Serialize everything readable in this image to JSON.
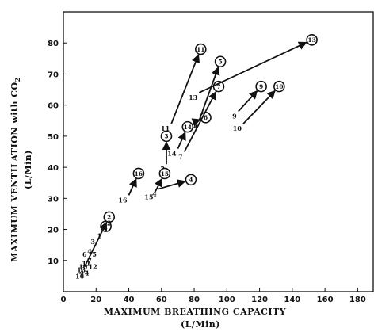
{
  "chart_data": {
    "type": "scatter",
    "title": "",
    "xlabel": "MAXIMUM  BREATHING  CAPACITY",
    "xlabel_unit": "(L/Min)",
    "ylabel": "MAXIMUM  VENTILATION  with  CO",
    "ylabel_subscript": "2",
    "ylabel_unit": "(L/Min)",
    "xlim": [
      0,
      190
    ],
    "ylim": [
      0,
      90
    ],
    "x_ticks": [
      0,
      20,
      40,
      60,
      80,
      100,
      120,
      140,
      160,
      180
    ],
    "y_ticks": [
      10,
      20,
      30,
      40,
      50,
      60,
      70,
      80
    ],
    "grid": false,
    "legend": "none",
    "ink_color": "#111111",
    "pairs": [
      {
        "id": "1",
        "start": [
          26,
          21
        ],
        "end": [
          26,
          21
        ]
      },
      {
        "id": "2",
        "start": [
          13,
          8
        ],
        "end": [
          28,
          24
        ]
      },
      {
        "id": "3",
        "start": [
          63,
          41
        ],
        "end": [
          63,
          50
        ]
      },
      {
        "id": "4",
        "start": [
          58,
          33
        ],
        "end": [
          78,
          36
        ]
      },
      {
        "id": "5",
        "start": [
          83,
          55
        ],
        "end": [
          96,
          74
        ]
      },
      {
        "id": "6",
        "start": [
          82,
          55
        ],
        "end": [
          87,
          56
        ]
      },
      {
        "id": "7",
        "start": [
          74,
          45
        ],
        "end": [
          95,
          66
        ]
      },
      {
        "id": "9",
        "start": [
          107,
          58
        ],
        "end": [
          121,
          66
        ]
      },
      {
        "id": "10",
        "start": [
          110,
          54
        ],
        "end": [
          132,
          66
        ]
      },
      {
        "id": "11",
        "start": [
          66,
          54
        ],
        "end": [
          84,
          78
        ]
      },
      {
        "id": "13",
        "start": [
          83,
          64
        ],
        "end": [
          152,
          81
        ]
      },
      {
        "id": "14",
        "start": [
          70,
          46
        ],
        "end": [
          76,
          53
        ]
      },
      {
        "id": "15",
        "start": [
          56,
          32
        ],
        "end": [
          62,
          38
        ]
      },
      {
        "id": "16",
        "start": [
          40,
          31
        ],
        "end": [
          46,
          38
        ]
      }
    ],
    "cluster_labels": [
      {
        "text": "1",
        "x": 22,
        "y": 18
      },
      {
        "text": "2",
        "x": 28,
        "y": 22
      },
      {
        "text": "3",
        "x": 18,
        "y": 16
      },
      {
        "text": "4",
        "x": 16,
        "y": 13
      },
      {
        "text": "5",
        "x": 19,
        "y": 12
      },
      {
        "text": "6",
        "x": 13,
        "y": 12
      },
      {
        "text": "7",
        "x": 16,
        "y": 10
      },
      {
        "text": "10",
        "x": 12,
        "y": 8
      },
      {
        "text": "11",
        "x": 14,
        "y": 9
      },
      {
        "text": "12",
        "x": 18,
        "y": 8
      },
      {
        "text": "13",
        "x": 11,
        "y": 7
      },
      {
        "text": "14",
        "x": 13,
        "y": 6
      },
      {
        "text": "16",
        "x": 10,
        "y": 5
      }
    ]
  }
}
